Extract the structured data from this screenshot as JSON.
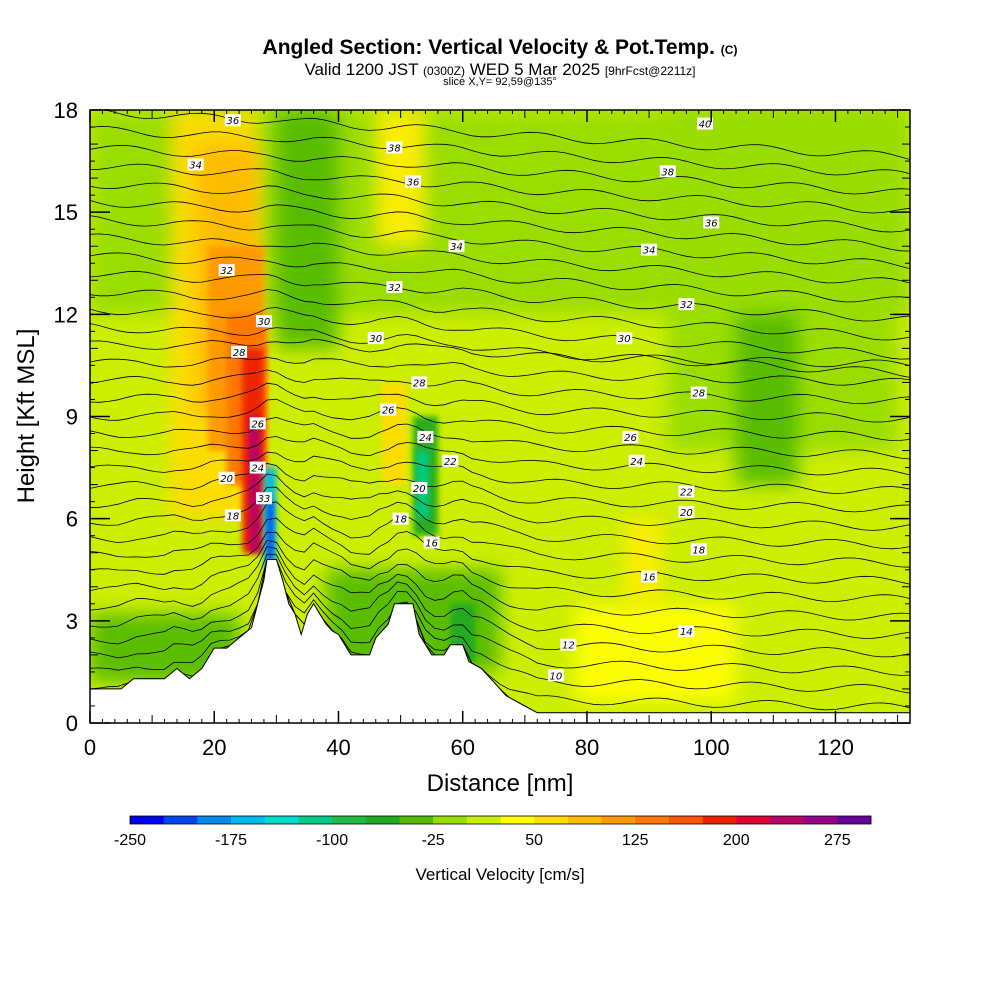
{
  "header": {
    "title": "Angled Section: Vertical Velocity & Pot.Temp.",
    "title_mark": "(C)",
    "valid_a": "Valid 1200 JST",
    "valid_b": "(0300Z)",
    "valid_c": "WED 5 Mar 2025",
    "valid_d": "[9hrFcst@2211z]",
    "slice": "slice X,Y= 92,59@135°"
  },
  "chart_data": {
    "type": "heatmap",
    "title": "Angled Section: Vertical Velocity & Pot.Temp.",
    "xlabel": "Distance [nm]",
    "ylabel": "Height [Kft MSL]",
    "xlim": [
      0,
      132
    ],
    "ylim": [
      0,
      18
    ],
    "x_ticks": [
      0,
      20,
      40,
      60,
      80,
      100,
      120
    ],
    "y_ticks": [
      0,
      3,
      6,
      9,
      12,
      15,
      18
    ],
    "colorbar": {
      "title": "Vertical Velocity [cm/s]",
      "range": [
        -250,
        300
      ],
      "tick_values": [
        -250,
        -175,
        -100,
        -25,
        50,
        125,
        200,
        275
      ],
      "tick_labels": [
        "-250",
        "-175",
        "-100",
        "-25",
        "50",
        "125",
        "200",
        "275"
      ],
      "colors": [
        "#0000ee",
        "#0044ee",
        "#0088ee",
        "#00bbee",
        "#00ddcc",
        "#00cc88",
        "#22bb44",
        "#22aa22",
        "#55bb00",
        "#99dd00",
        "#ccee00",
        "#ffff00",
        "#ffdd00",
        "#ffbb00",
        "#ff9900",
        "#ff7700",
        "#ff5500",
        "#ee2200",
        "#dd0033",
        "#bb0066",
        "#990088",
        "#660099"
      ]
    },
    "terrain": [
      [
        0,
        1.0
      ],
      [
        5,
        1.0
      ],
      [
        7,
        1.3
      ],
      [
        12,
        1.3
      ],
      [
        14,
        1.6
      ],
      [
        16,
        1.3
      ],
      [
        18,
        1.6
      ],
      [
        20,
        2.2
      ],
      [
        22,
        2.2
      ],
      [
        24,
        2.5
      ],
      [
        26,
        2.8
      ],
      [
        27,
        3.5
      ],
      [
        28,
        4.2
      ],
      [
        28.5,
        4.8
      ],
      [
        30,
        4.8
      ],
      [
        31,
        4.2
      ],
      [
        32,
        3.5
      ],
      [
        33,
        3.2
      ],
      [
        34,
        2.6
      ],
      [
        35,
        3.2
      ],
      [
        36,
        3.5
      ],
      [
        37,
        3.2
      ],
      [
        38,
        2.9
      ],
      [
        39,
        2.7
      ],
      [
        40,
        2.6
      ],
      [
        41,
        2.3
      ],
      [
        42,
        2.0
      ],
      [
        45,
        2.0
      ],
      [
        46,
        2.5
      ],
      [
        48,
        2.9
      ],
      [
        49,
        3.5
      ],
      [
        52,
        3.5
      ],
      [
        53,
        2.6
      ],
      [
        55,
        2.0
      ],
      [
        57,
        2.0
      ],
      [
        58,
        2.3
      ],
      [
        60,
        2.3
      ],
      [
        61,
        1.8
      ],
      [
        63,
        1.6
      ],
      [
        65,
        1.2
      ],
      [
        67,
        0.8
      ],
      [
        70,
        0.5
      ],
      [
        72,
        0.3
      ],
      [
        132,
        0.3
      ]
    ],
    "theta_levels": [
      {
        "value": "10",
        "x": 75,
        "y": 1.4
      },
      {
        "value": "12",
        "x": 77,
        "y": 2.3
      },
      {
        "value": "14",
        "x": 96,
        "y": 2.7
      },
      {
        "value": "16",
        "x": 55,
        "y": 5.3
      },
      {
        "value": "16",
        "x": 90,
        "y": 4.3
      },
      {
        "value": "18",
        "x": 23,
        "y": 6.1
      },
      {
        "value": "18",
        "x": 50,
        "y": 6.0
      },
      {
        "value": "18",
        "x": 98,
        "y": 5.1
      },
      {
        "value": "20",
        "x": 22,
        "y": 7.2
      },
      {
        "value": "20",
        "x": 53,
        "y": 6.9
      },
      {
        "value": "20",
        "x": 96,
        "y": 6.2
      },
      {
        "value": "22",
        "x": 58,
        "y": 7.7
      },
      {
        "value": "22",
        "x": 96,
        "y": 6.8
      },
      {
        "value": "24",
        "x": 27,
        "y": 7.5
      },
      {
        "value": "24",
        "x": 54,
        "y": 8.4
      },
      {
        "value": "24",
        "x": 88,
        "y": 7.7
      },
      {
        "value": "26",
        "x": 27,
        "y": 8.8
      },
      {
        "value": "26",
        "x": 48,
        "y": 9.2
      },
      {
        "value": "26",
        "x": 87,
        "y": 8.4
      },
      {
        "value": "28",
        "x": 24,
        "y": 10.9
      },
      {
        "value": "28",
        "x": 53,
        "y": 10.0
      },
      {
        "value": "28",
        "x": 98,
        "y": 9.7
      },
      {
        "value": "30",
        "x": 28,
        "y": 11.8
      },
      {
        "value": "30",
        "x": 46,
        "y": 11.3
      },
      {
        "value": "30",
        "x": 86,
        "y": 11.3
      },
      {
        "value": "32",
        "x": 22,
        "y": 13.3
      },
      {
        "value": "32",
        "x": 49,
        "y": 12.8
      },
      {
        "value": "32",
        "x": 96,
        "y": 12.3
      },
      {
        "value": "33",
        "x": 28,
        "y": 6.6
      },
      {
        "value": "34",
        "x": 17,
        "y": 16.4
      },
      {
        "value": "34",
        "x": 59,
        "y": 14.0
      },
      {
        "value": "34",
        "x": 90,
        "y": 13.9
      },
      {
        "value": "36",
        "x": 23,
        "y": 17.7
      },
      {
        "value": "36",
        "x": 52,
        "y": 15.9
      },
      {
        "value": "36",
        "x": 100,
        "y": 14.7
      },
      {
        "value": "38",
        "x": 49,
        "y": 16.9
      },
      {
        "value": "38",
        "x": 93,
        "y": 16.2
      },
      {
        "value": "40",
        "x": 99,
        "y": 17.6
      }
    ]
  }
}
